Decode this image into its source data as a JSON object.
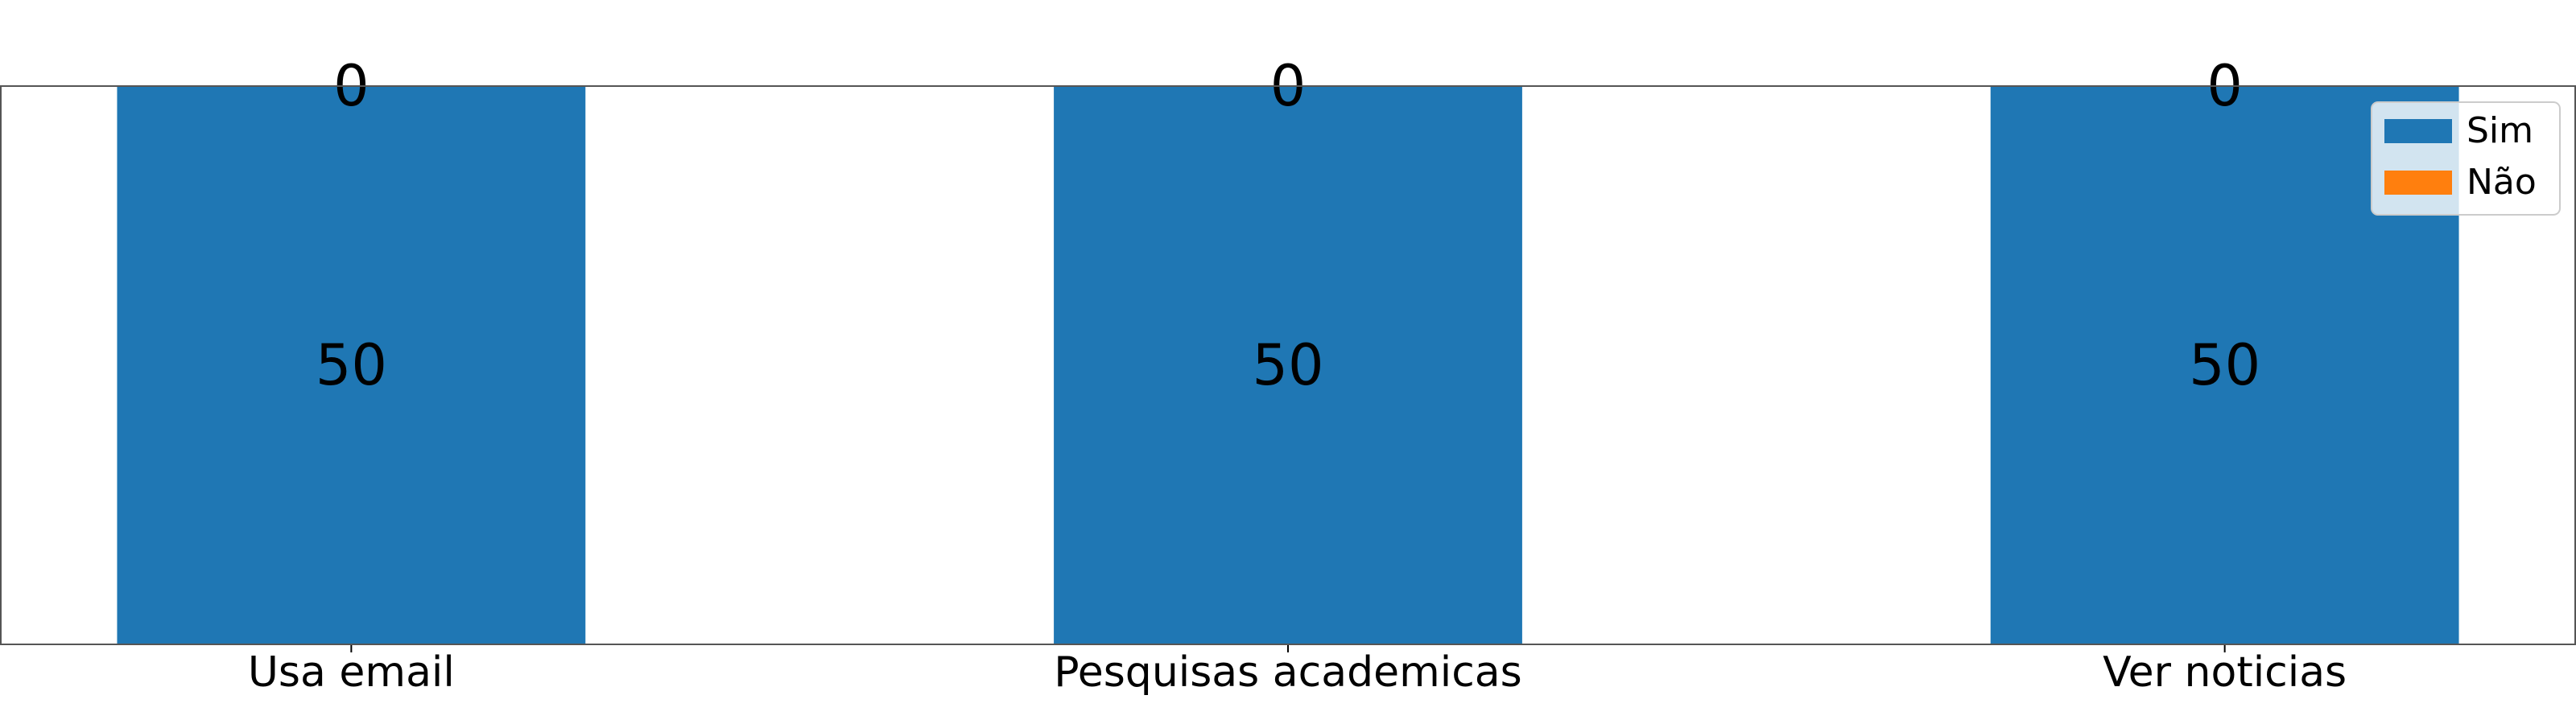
{
  "chart_data": {
    "type": "bar",
    "stacked": true,
    "categories": [
      "Usa email",
      "Pesquisas academicas",
      "Ver noticias"
    ],
    "series": [
      {
        "name": "Sim",
        "values": [
          50,
          50,
          50
        ],
        "color": "#1f77b4"
      },
      {
        "name": "Não",
        "values": [
          0,
          0,
          0
        ],
        "color": "#ff7f0e"
      }
    ],
    "ylim": [
      0,
      50
    ],
    "grid": false,
    "legend_position": "top-right"
  }
}
